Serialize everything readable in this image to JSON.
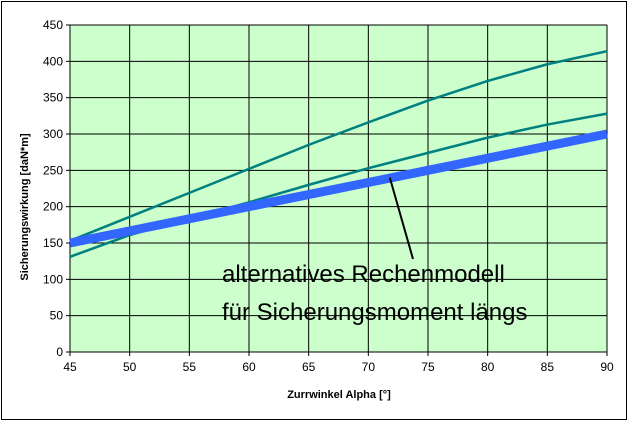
{
  "chart_data": {
    "type": "line",
    "title": "",
    "xlabel": "Zurrwinkel Alpha [°]",
    "ylabel": "Sicherungswirkung [daN*m]",
    "xlim": [
      45,
      90
    ],
    "ylim": [
      0,
      450
    ],
    "x_ticks": [
      45,
      50,
      55,
      60,
      65,
      70,
      75,
      80,
      85,
      90
    ],
    "y_ticks": [
      0,
      50,
      100,
      150,
      200,
      250,
      300,
      350,
      400,
      450
    ],
    "grid": true,
    "plot_background": "#ccffcc",
    "series": [
      {
        "color": "#008080",
        "x": [
          45,
          50,
          55,
          60,
          65,
          70,
          75,
          80,
          85,
          90
        ],
        "y": [
          153,
          186,
          219,
          252,
          285,
          316,
          346,
          373,
          396,
          414
        ]
      },
      {
        "color": "#008080",
        "x": [
          45,
          50,
          55,
          60,
          65,
          70,
          75,
          80,
          85,
          90
        ],
        "y": [
          131,
          161,
          184,
          206,
          230,
          253,
          274,
          295,
          313,
          328
        ]
      },
      {
        "color": "#3366ff",
        "x": [
          45,
          90
        ],
        "y": [
          150,
          300
        ]
      }
    ],
    "annotation": {
      "line1": "alternatives Rechenmodell",
      "line2": "für Sicherungsmoment längs",
      "arrow_target": [
        71.8,
        240
      ]
    }
  }
}
